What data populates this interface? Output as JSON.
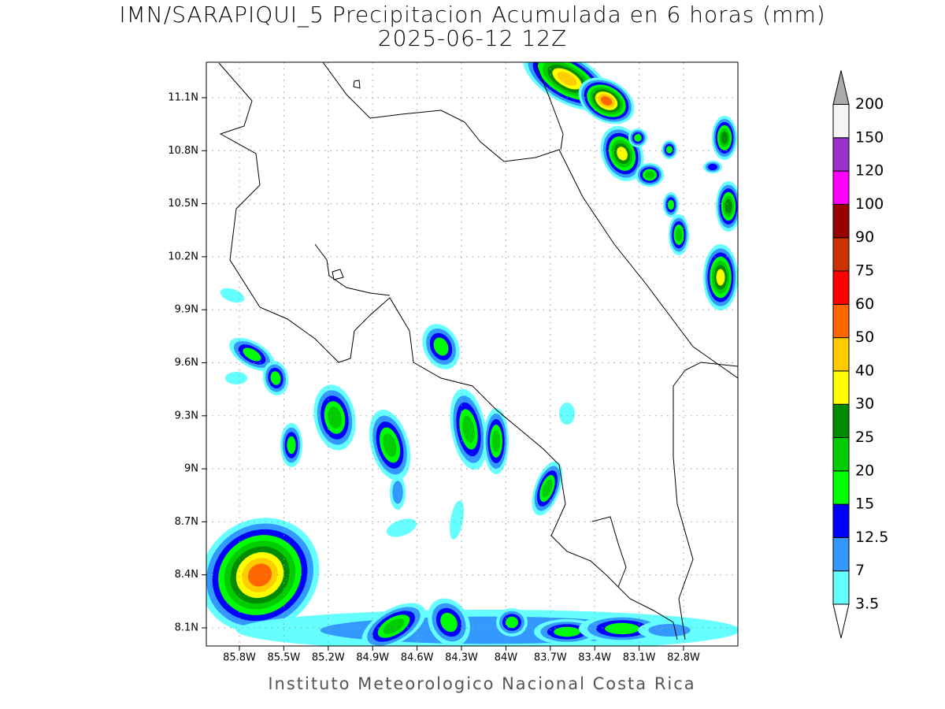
{
  "title": "IMN/SARAPIQUI_5 Precipitacion Acumulada en 6 horas (mm)",
  "subtitle": "2025-06-12 12Z",
  "x_axis": {
    "ticks": [
      "85.8W",
      "85.5W",
      "85.2W",
      "84.9W",
      "84.6W",
      "84.3W",
      "84W",
      "83.7W",
      "83.4W",
      "83.1W",
      "82.8W"
    ]
  },
  "y_axis": {
    "ticks": [
      "8.1N",
      "8.4N",
      "8.7N",
      "9N",
      "9.3N",
      "9.6N",
      "9.9N",
      "10.2N",
      "10.5N",
      "10.8N",
      "11.1N"
    ]
  },
  "colorbar": {
    "labels": [
      "3.5",
      "7",
      "12.5",
      "15",
      "20",
      "25",
      "30",
      "40",
      "50",
      "60",
      "75",
      "90",
      "100",
      "120",
      "150",
      "200"
    ],
    "colors": [
      "#66ffff",
      "#3399ff",
      "#0000ff",
      "#00ff00",
      "#00cc00",
      "#008c00",
      "#ffff00",
      "#ffcc00",
      "#ff6600",
      "#ff0000",
      "#cc3300",
      "#990000",
      "#ff00ff",
      "#9933cc",
      "#f5f5f5"
    ],
    "under_color": "#ffffff",
    "over_color": "#aaaaaa"
  },
  "footer": "Instituto Meteorologico Nacional Costa Rica"
}
